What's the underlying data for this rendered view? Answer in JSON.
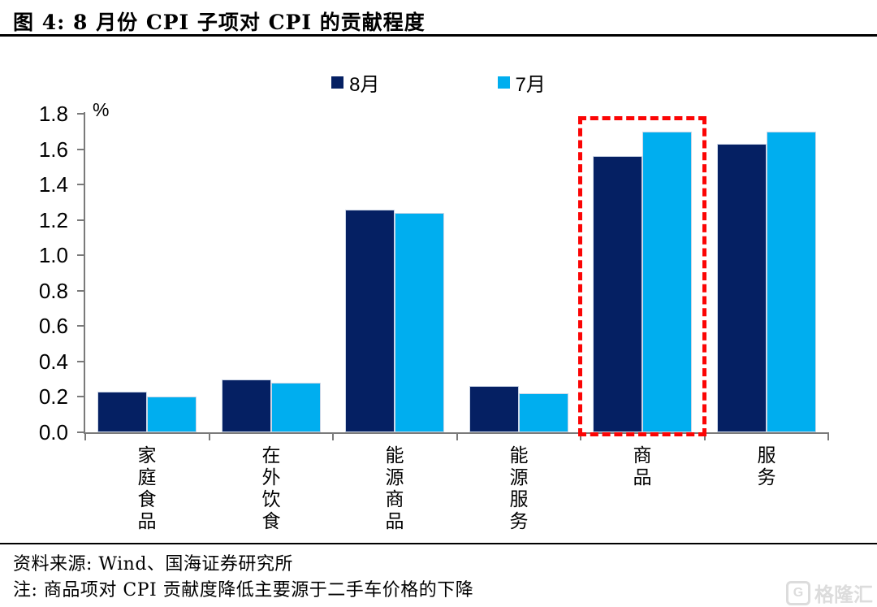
{
  "header": {
    "title": "图 4:  8 月份 CPI 子项对 CPI 的贡献程度"
  },
  "legend": [
    {
      "label": "8月",
      "color": "#052063"
    },
    {
      "label": "7月",
      "color": "#00AEEF"
    }
  ],
  "chart_data": {
    "type": "bar",
    "title": "8月份CPI子项对CPI的贡献程度",
    "categories": [
      "家庭食品",
      "在外饮食",
      "能源商品",
      "能源服务",
      "商品",
      "服务"
    ],
    "series": [
      {
        "name": "8月",
        "color": "#052063",
        "values": [
          0.23,
          0.3,
          1.26,
          0.26,
          1.56,
          1.63
        ]
      },
      {
        "name": "7月",
        "color": "#00AEEF",
        "values": [
          0.2,
          0.28,
          1.24,
          0.22,
          1.7,
          1.7
        ]
      }
    ],
    "xlabel": "",
    "ylabel": "%",
    "ylim": [
      0,
      1.8
    ],
    "ytick_step": 0.2,
    "grid": false,
    "legend_position": "top-center",
    "annotation": {
      "type": "dashed-box",
      "category": "商品",
      "color": "#fb0505"
    }
  },
  "footer": {
    "source": "资料来源: Wind、国海证券研究所",
    "note": "注: 商品项对 CPI 贡献度降低主要源于二手车价格的下降"
  },
  "watermark": {
    "logo_letter": "G",
    "text": "格隆汇"
  }
}
